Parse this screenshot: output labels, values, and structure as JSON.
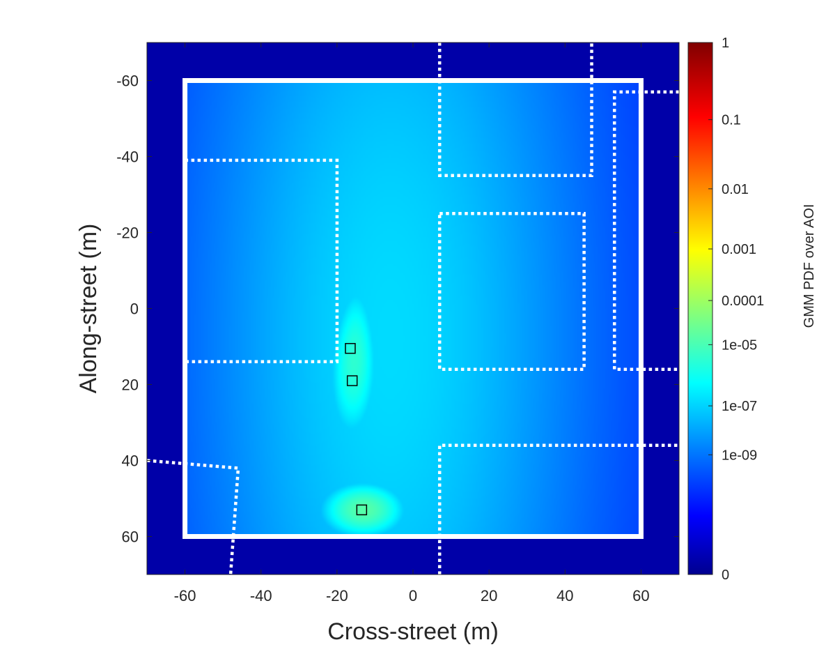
{
  "chart_data": {
    "type": "heatmap",
    "title": "",
    "xlabel": "Cross-street (m)",
    "ylabel": "Along-street (m)",
    "xlim": [
      -70,
      70
    ],
    "ylim": [
      -70,
      70
    ],
    "y_reversed": true,
    "xticks": [
      -60,
      -40,
      -20,
      0,
      20,
      40,
      60
    ],
    "xtick_labels": [
      "-60",
      "-40",
      "-20",
      "0",
      "20",
      "40",
      "60"
    ],
    "yticks": [
      -60,
      -40,
      -20,
      0,
      20,
      40,
      60
    ],
    "ytick_labels": [
      "-60",
      "-40",
      "-20",
      "0",
      "20",
      "40",
      "60"
    ],
    "grid": false,
    "colorbar": {
      "label": "GMM PDF over AOI",
      "scale": "log",
      "tick_labels": [
        "1",
        "0.1",
        "0.01",
        "0.001",
        "0.0001",
        "1e-05",
        "1e-07",
        "1e-09",
        "0"
      ],
      "tick_fractions": [
        1.0,
        0.855,
        0.725,
        0.612,
        0.515,
        0.432,
        0.317,
        0.225,
        0.0
      ],
      "colormap": "jet"
    },
    "aoi_boundary": {
      "x_min": -60,
      "x_max": 60,
      "y_min": -60,
      "y_max": 60,
      "color": "#ffffff"
    },
    "building_outlines": [
      [
        [
          -60,
          -39
        ],
        [
          -20,
          -39
        ],
        [
          -20,
          14
        ],
        [
          -60,
          14
        ]
      ],
      [
        [
          7,
          -70
        ],
        [
          7,
          -35
        ],
        [
          47,
          -35
        ],
        [
          47,
          -70
        ]
      ],
      [
        [
          7,
          -25
        ],
        [
          45,
          -25
        ],
        [
          45,
          16
        ],
        [
          7,
          16
        ]
      ],
      [
        [
          70,
          -57
        ],
        [
          53,
          -57
        ],
        [
          53,
          16
        ],
        [
          70,
          16
        ]
      ],
      [
        [
          7,
          70
        ],
        [
          7,
          36
        ],
        [
          70,
          36
        ]
      ],
      [
        [
          -70,
          40
        ],
        [
          -46,
          42
        ],
        [
          -48,
          70
        ]
      ]
    ],
    "measurement_points": [
      {
        "x": -16.5,
        "y": 10.5
      },
      {
        "x": -16,
        "y": 19
      },
      {
        "x": -13.5,
        "y": 53
      }
    ],
    "density_peaks": [
      {
        "x": -16,
        "y": 15,
        "level": 0.42
      },
      {
        "x": -14,
        "y": 52,
        "level": 0.46
      }
    ]
  }
}
